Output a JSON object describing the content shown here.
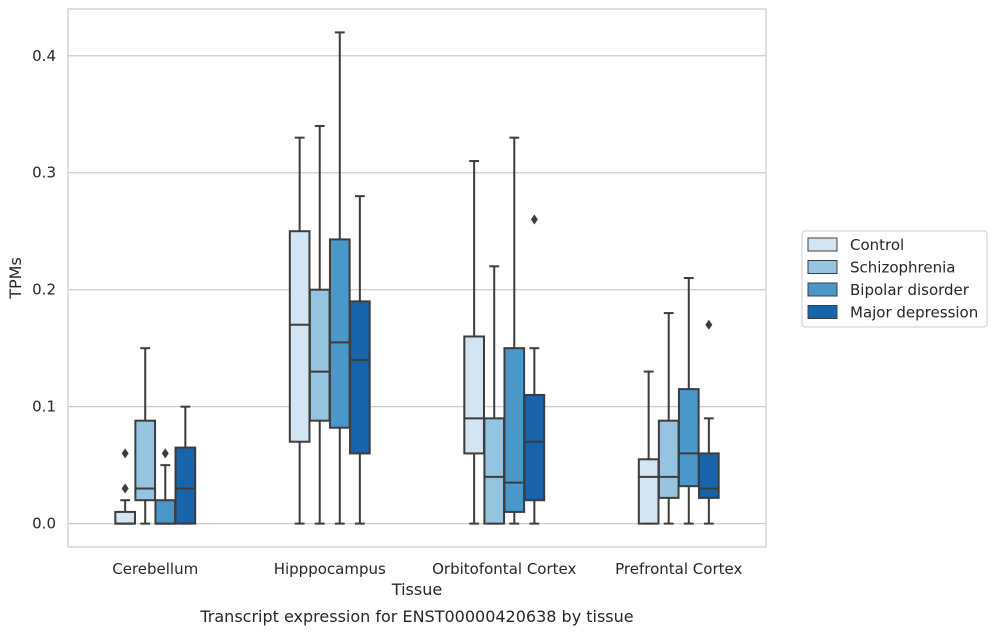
{
  "chart_data": {
    "type": "boxplot",
    "caption": "Transcript expression for ENST00000420638 by tissue",
    "xlabel": "Tissue",
    "ylabel": "TPMs",
    "ylim": [
      -0.02,
      0.44
    ],
    "yticks": [
      0.0,
      0.1,
      0.2,
      0.3,
      0.4
    ],
    "ytick_labels": [
      "0.0",
      "0.1",
      "0.2",
      "0.3",
      "0.4"
    ],
    "grid": "horizontal",
    "legend_position": "right",
    "categories": [
      "Cerebellum",
      "Hipppocampus",
      "Orbitofontal Cortex",
      "Prefrontal Cortex"
    ],
    "series": [
      {
        "name": "Control",
        "color": "#d3e4f3",
        "boxes": [
          {
            "whislo": 0.0,
            "q1": 0.0,
            "med": 0.0,
            "q3": 0.01,
            "whishi": 0.02,
            "fliers": [
              0.03,
              0.06
            ]
          },
          {
            "whislo": 0.0,
            "q1": 0.07,
            "med": 0.17,
            "q3": 0.25,
            "whishi": 0.33,
            "fliers": []
          },
          {
            "whislo": 0.0,
            "q1": 0.06,
            "med": 0.09,
            "q3": 0.16,
            "whishi": 0.31,
            "fliers": []
          },
          {
            "whislo": 0.0,
            "q1": 0.0,
            "med": 0.04,
            "q3": 0.055,
            "whishi": 0.13,
            "fliers": []
          }
        ]
      },
      {
        "name": "Schizophrenia",
        "color": "#94c4df",
        "boxes": [
          {
            "whislo": 0.0,
            "q1": 0.02,
            "med": 0.03,
            "q3": 0.088,
            "whishi": 0.15,
            "fliers": []
          },
          {
            "whislo": 0.0,
            "q1": 0.088,
            "med": 0.13,
            "q3": 0.2,
            "whishi": 0.34,
            "fliers": []
          },
          {
            "whislo": 0.0,
            "q1": 0.0,
            "med": 0.04,
            "q3": 0.09,
            "whishi": 0.22,
            "fliers": []
          },
          {
            "whislo": 0.0,
            "q1": 0.022,
            "med": 0.04,
            "q3": 0.088,
            "whishi": 0.18,
            "fliers": []
          }
        ]
      },
      {
        "name": "Bipolar disorder",
        "color": "#4a98c9",
        "boxes": [
          {
            "whislo": 0.0,
            "q1": 0.0,
            "med": 0.0,
            "q3": 0.02,
            "whishi": 0.05,
            "fliers": [
              0.06
            ]
          },
          {
            "whislo": 0.0,
            "q1": 0.082,
            "med": 0.155,
            "q3": 0.243,
            "whishi": 0.42,
            "fliers": []
          },
          {
            "whislo": 0.0,
            "q1": 0.01,
            "med": 0.035,
            "q3": 0.15,
            "whishi": 0.33,
            "fliers": []
          },
          {
            "whislo": 0.0,
            "q1": 0.032,
            "med": 0.06,
            "q3": 0.115,
            "whishi": 0.21,
            "fliers": []
          }
        ]
      },
      {
        "name": "Major depression",
        "color": "#1764ab",
        "boxes": [
          {
            "whislo": 0.0,
            "q1": 0.0,
            "med": 0.03,
            "q3": 0.065,
            "whishi": 0.1,
            "fliers": []
          },
          {
            "whislo": 0.0,
            "q1": 0.06,
            "med": 0.14,
            "q3": 0.19,
            "whishi": 0.28,
            "fliers": []
          },
          {
            "whislo": 0.0,
            "q1": 0.02,
            "med": 0.07,
            "q3": 0.11,
            "whishi": 0.15,
            "fliers": [
              0.26
            ]
          },
          {
            "whislo": 0.0,
            "q1": 0.022,
            "med": 0.03,
            "q3": 0.06,
            "whishi": 0.09,
            "fliers": [
              0.17
            ]
          }
        ]
      }
    ]
  }
}
